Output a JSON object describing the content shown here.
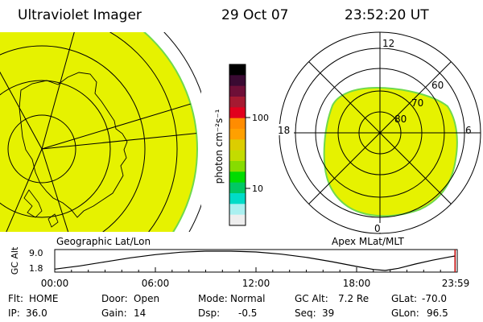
{
  "header": {
    "title": "Ultraviolet Imager",
    "date": "29 Oct 07",
    "time": "23:52:20 UT"
  },
  "colorbar": {
    "unit_label": "photon cm⁻²s⁻¹",
    "ticks": [
      "100",
      "10"
    ],
    "colors": [
      "#000000",
      "#3a0a32",
      "#6e0f37",
      "#a51a31",
      "#e1001d",
      "#ff8c00",
      "#ffa000",
      "#dccd00",
      "#c3dc00",
      "#87dc00",
      "#00dc00",
      "#00c864",
      "#00dcc8",
      "#aaf0f0",
      "#eeeeee"
    ]
  },
  "geo_panel": {
    "caption": "Geographic Lat/Lon",
    "fill_color": "#e6f200",
    "edge_color": "#6fd94c"
  },
  "polar_panel": {
    "caption": "Apex MLat/MLT",
    "mlt_labels": {
      "top": "12",
      "left": "18",
      "right": "6",
      "bottom": "0"
    },
    "lat_labels": [
      "60",
      "70",
      "80"
    ],
    "fill_color": "#e6f200",
    "edge_color": "#6fd94c"
  },
  "chart_data": {
    "type": "line",
    "ylabel": "GC Alt",
    "yticks": [
      "9.0",
      "1.8"
    ],
    "ylim": [
      1.8,
      9.0
    ],
    "x_tick_labels": [
      "00:00",
      "06:00",
      "12:00",
      "18:00",
      "23:59"
    ],
    "xlim_hours": [
      0,
      24
    ],
    "series": [
      {
        "x": [
          0.0,
          1.5,
          3.0,
          4.5,
          6.0,
          7.5,
          9.0,
          10.5,
          12.0,
          13.5,
          15.0,
          16.5,
          18.0,
          19.0,
          19.7,
          20.5,
          21.5,
          22.5,
          23.5,
          23.87
        ],
        "values": [
          2.3,
          3.5,
          5.0,
          6.5,
          7.7,
          8.6,
          9.0,
          9.0,
          8.7,
          7.9,
          6.7,
          5.1,
          3.3,
          2.2,
          1.8,
          2.6,
          4.2,
          5.6,
          6.8,
          7.2
        ]
      }
    ],
    "marker_hour": 23.87,
    "marker_color": "#c00000"
  },
  "footer": {
    "rows": [
      [
        {
          "label": "Flt:",
          "value": "HOME"
        },
        {
          "label": "Door:",
          "value": "Open"
        },
        {
          "label": "Mode:",
          "value": "Normal"
        },
        {
          "label": "GC Alt:",
          "value": "7.2 Re"
        },
        {
          "label": "GLat:",
          "value": "-70.0"
        }
      ],
      [
        {
          "label": "IP:",
          "value": "36.0"
        },
        {
          "label": "Gain:",
          "value": "14"
        },
        {
          "label": "Dsp:",
          "value": "-0.5"
        },
        {
          "label": "Seq:",
          "value": "39"
        },
        {
          "label": "GLon:",
          "value": "96.5"
        }
      ]
    ]
  }
}
